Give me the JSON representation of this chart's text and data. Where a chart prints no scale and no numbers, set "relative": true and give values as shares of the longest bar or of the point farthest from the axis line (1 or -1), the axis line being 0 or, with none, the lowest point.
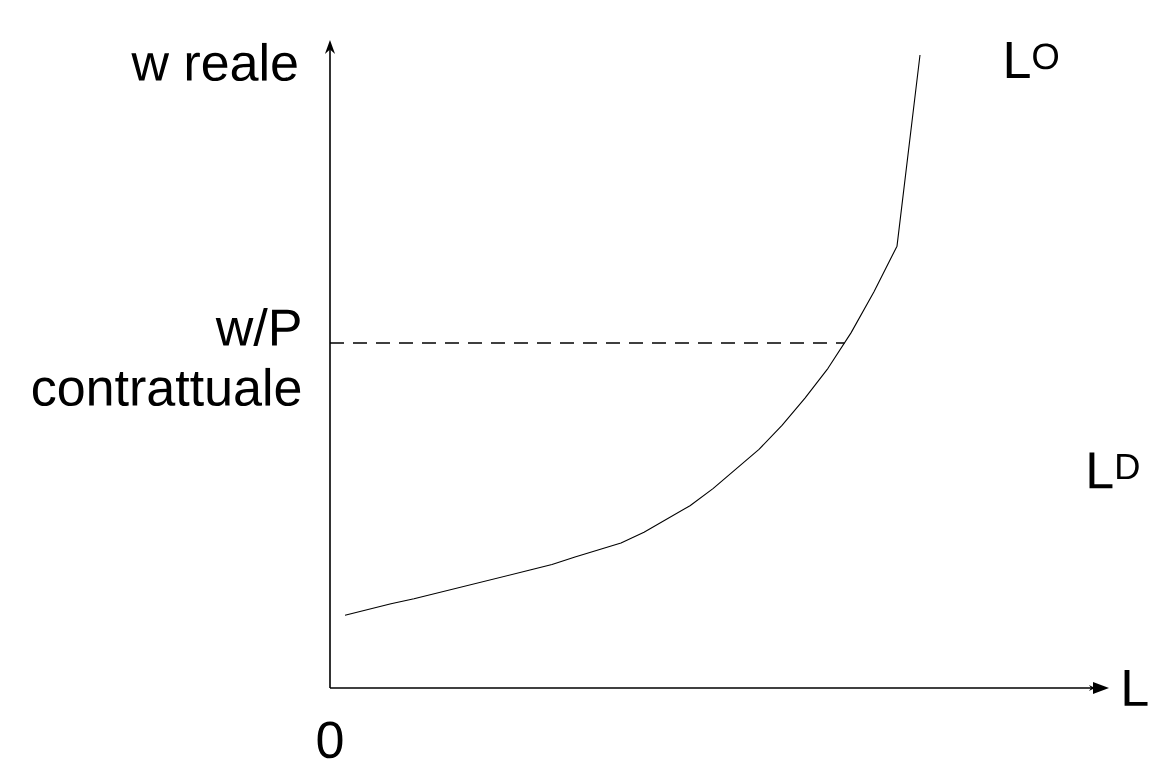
{
  "chart_data": {
    "type": "line",
    "relative": true,
    "xlabel": "L",
    "ylabel": "w reale",
    "categories": [
      null,
      null,
      null,
      null,
      null,
      null,
      null,
      null,
      null,
      null,
      null,
      null,
      null,
      null,
      null,
      null,
      null,
      null,
      null,
      null,
      null,
      null,
      null,
      null,
      null,
      null
    ],
    "series": [
      {
        "name": "L$^{O}$",
        "color": "#000000",
        "values": [
          0.115,
          0.124,
          0.133,
          0.141,
          0.15,
          0.159,
          0.168,
          0.177,
          0.186,
          0.195,
          0.207,
          0.218,
          0.229,
          0.246,
          0.267,
          0.288,
          0.315,
          0.346,
          0.377,
          0.415,
          0.458,
          0.505,
          0.561,
          0.626,
          0.698,
          1
        ]
      }
    ],
    "ref_lines": [
      {
        "axis": "y",
        "value": 0.545,
        "label": "w/P contrattuale",
        "color": "#000000",
        "line_style": "dashed"
      }
    ],
    "annotations": [
      "L$^{D}$",
      "0"
    ],
    "marker": "none",
    "line_style": "solid"
  }
}
